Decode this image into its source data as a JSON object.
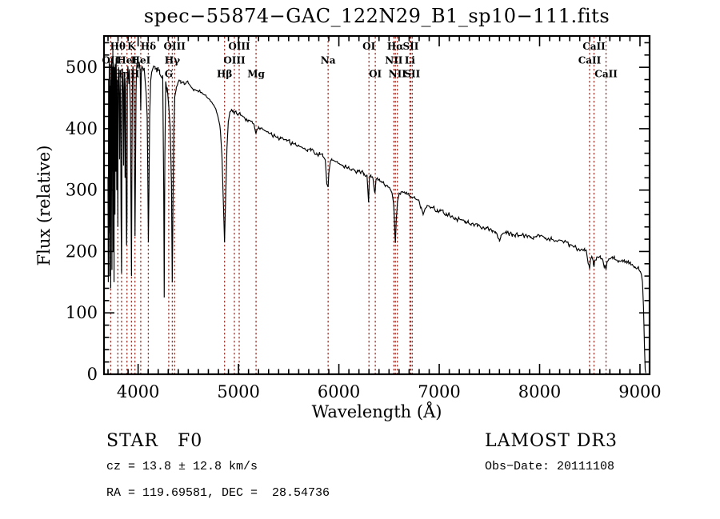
{
  "title": "spec−55874−GAC_122N29_B1_sp10−111.fits",
  "colors": {
    "background": "#ffffff",
    "axis": "#000000",
    "spectrum": "#000000",
    "line_marker": "#a03a32",
    "label_text": "#000000"
  },
  "axes": {
    "xlabel": "Wavelength (Å)",
    "ylabel": "Flux (relative)",
    "xlim": [
      3660,
      9096
    ],
    "ylim": [
      0,
      551
    ],
    "xticks": [
      4000,
      5000,
      6000,
      7000,
      8000,
      9000
    ],
    "yticks": [
      0,
      100,
      200,
      300,
      400,
      500
    ],
    "x_minor_step": 100,
    "y_minor_step": 20
  },
  "footer": {
    "class_label": "STAR   F0",
    "cz_line": "cz = 13.8 ± 12.8 km/s",
    "radec_line": "RA = 119.69581, DEC =  28.54736",
    "survey": "LAMOST DR3",
    "obs_date": "Obs−Date: 20111108"
  },
  "chart_data": {
    "type": "line",
    "series_name": "flux",
    "x_unit": "Angstrom",
    "title": "spec−55874−GAC_122N29_B1_sp10−111.fits",
    "xlabel": "Wavelength (Å)",
    "ylabel": "Flux (relative)",
    "xlim": [
      3660,
      9096
    ],
    "ylim": [
      0,
      551
    ],
    "noise_amplitude": 4,
    "spectral_lines": [
      {
        "wavelength": 3727,
        "label": "OII",
        "row": 2
      },
      {
        "wavelength": 3798,
        "label": "Hθ",
        "row": 1
      },
      {
        "wavelength": 3835,
        "label": "Hη",
        "row": 3
      },
      {
        "wavelength": 3889,
        "label": "HeI",
        "row": 2
      },
      {
        "wavelength": 3933.7,
        "label": "K",
        "row": 1
      },
      {
        "wavelength": 3968.5,
        "label": "H",
        "row": 3
      },
      {
        "wavelength": 4026,
        "label": "HeI",
        "row": 2
      },
      {
        "wavelength": 4101.7,
        "label": "Hδ",
        "row": 1
      },
      {
        "wavelength": 4305,
        "label": "G",
        "row": 3
      },
      {
        "wavelength": 4340.5,
        "label": "Hγ",
        "row": 2
      },
      {
        "wavelength": 4363,
        "label": "OIII",
        "row": 1
      },
      {
        "wavelength": 4861.3,
        "label": "Hβ",
        "row": 3
      },
      {
        "wavelength": 4959,
        "label": "OIII",
        "row": 2
      },
      {
        "wavelength": 5007,
        "label": "OIII",
        "row": 1
      },
      {
        "wavelength": 5175,
        "label": "Mg",
        "row": 3
      },
      {
        "wavelength": 5893,
        "label": "Na",
        "row": 2
      },
      {
        "wavelength": 6300,
        "label": "OI",
        "row": 1
      },
      {
        "wavelength": 6363,
        "label": "OI",
        "row": 3
      },
      {
        "wavelength": 6548,
        "label": "NII",
        "row": 2
      },
      {
        "wavelength": 6562.8,
        "label": "Hα",
        "row": 1
      },
      {
        "wavelength": 6583,
        "label": "NII",
        "row": 3
      },
      {
        "wavelength": 6708,
        "label": "Li",
        "row": 2
      },
      {
        "wavelength": 6716,
        "label": "SII",
        "row": 1
      },
      {
        "wavelength": 6731,
        "label": "SII",
        "row": 3
      },
      {
        "wavelength": 8498,
        "label": "CaII",
        "row": 2
      },
      {
        "wavelength": 8542,
        "label": "CaII",
        "row": 1
      },
      {
        "wavelength": 8662,
        "label": "CaII",
        "row": 3
      }
    ],
    "points": [
      [
        3700,
        320
      ],
      [
        3703,
        150
      ],
      [
        3706,
        480
      ],
      [
        3709,
        230
      ],
      [
        3712,
        515
      ],
      [
        3715,
        160
      ],
      [
        3718,
        470
      ],
      [
        3721,
        240
      ],
      [
        3724,
        505
      ],
      [
        3727,
        140
      ],
      [
        3730,
        480
      ],
      [
        3733,
        300
      ],
      [
        3736,
        515
      ],
      [
        3739,
        170
      ],
      [
        3742,
        500
      ],
      [
        3745,
        330
      ],
      [
        3748,
        535
      ],
      [
        3751,
        200
      ],
      [
        3754,
        505
      ],
      [
        3757,
        420
      ],
      [
        3760,
        150
      ],
      [
        3763,
        500
      ],
      [
        3766,
        455
      ],
      [
        3769,
        260
      ],
      [
        3772,
        505
      ],
      [
        3775,
        480
      ],
      [
        3778,
        330
      ],
      [
        3781,
        515
      ],
      [
        3784,
        465
      ],
      [
        3787,
        300
      ],
      [
        3790,
        480
      ],
      [
        3795,
        350
      ],
      [
        3798,
        240
      ],
      [
        3801,
        475
      ],
      [
        3805,
        500
      ],
      [
        3810,
        455
      ],
      [
        3815,
        350
      ],
      [
        3820,
        488
      ],
      [
        3825,
        440
      ],
      [
        3830,
        260
      ],
      [
        3835,
        165
      ],
      [
        3840,
        470
      ],
      [
        3845,
        498
      ],
      [
        3850,
        458
      ],
      [
        3855,
        340
      ],
      [
        3860,
        492
      ],
      [
        3865,
        468
      ],
      [
        3870,
        320
      ],
      [
        3875,
        483
      ],
      [
        3880,
        300
      ],
      [
        3885,
        210
      ],
      [
        3889,
        255
      ],
      [
        3893,
        478
      ],
      [
        3898,
        502
      ],
      [
        3903,
        488
      ],
      [
        3908,
        473
      ],
      [
        3913,
        497
      ],
      [
        3918,
        463
      ],
      [
        3923,
        420
      ],
      [
        3928,
        300
      ],
      [
        3934,
        160
      ],
      [
        3938,
        340
      ],
      [
        3943,
        478
      ],
      [
        3948,
        502
      ],
      [
        3953,
        492
      ],
      [
        3958,
        458
      ],
      [
        3963,
        350
      ],
      [
        3969,
        225
      ],
      [
        3974,
        330
      ],
      [
        3979,
        458
      ],
      [
        3984,
        497
      ],
      [
        3989,
        507
      ],
      [
        3995,
        502
      ],
      [
        4000,
        498
      ],
      [
        4010,
        509
      ],
      [
        4020,
        495
      ],
      [
        4026,
        430
      ],
      [
        4032,
        497
      ],
      [
        4040,
        502
      ],
      [
        4050,
        495
      ],
      [
        4060,
        499
      ],
      [
        4070,
        478
      ],
      [
        4080,
        458
      ],
      [
        4090,
        420
      ],
      [
        4096,
        330
      ],
      [
        4102,
        215
      ],
      [
        4108,
        300
      ],
      [
        4115,
        420
      ],
      [
        4125,
        478
      ],
      [
        4135,
        492
      ],
      [
        4145,
        497
      ],
      [
        4155,
        502
      ],
      [
        4170,
        497
      ],
      [
        4185,
        492
      ],
      [
        4200,
        495
      ],
      [
        4215,
        489
      ],
      [
        4230,
        485
      ],
      [
        4245,
        487
      ],
      [
        4255,
        300
      ],
      [
        4260,
        125
      ],
      [
        4266,
        350
      ],
      [
        4275,
        477
      ],
      [
        4290,
        467
      ],
      [
        4305,
        437
      ],
      [
        4320,
        400
      ],
      [
        4332,
        310
      ],
      [
        4340,
        150
      ],
      [
        4348,
        290
      ],
      [
        4356,
        400
      ],
      [
        4365,
        452
      ],
      [
        4380,
        467
      ],
      [
        4395,
        474
      ],
      [
        4410,
        478
      ],
      [
        4425,
        474
      ],
      [
        4440,
        476
      ],
      [
        4460,
        472
      ],
      [
        4480,
        476
      ],
      [
        4500,
        474
      ],
      [
        4520,
        470
      ],
      [
        4540,
        466
      ],
      [
        4560,
        464
      ],
      [
        4580,
        462
      ],
      [
        4600,
        460
      ],
      [
        4620,
        459
      ],
      [
        4640,
        457
      ],
      [
        4660,
        455
      ],
      [
        4680,
        452
      ],
      [
        4700,
        449
      ],
      [
        4720,
        445
      ],
      [
        4740,
        441
      ],
      [
        4760,
        436
      ],
      [
        4780,
        428
      ],
      [
        4800,
        416
      ],
      [
        4820,
        396
      ],
      [
        4835,
        356
      ],
      [
        4850,
        276
      ],
      [
        4861,
        215
      ],
      [
        4872,
        288
      ],
      [
        4885,
        368
      ],
      [
        4900,
        412
      ],
      [
        4915,
        427
      ],
      [
        4930,
        432
      ],
      [
        4945,
        430
      ],
      [
        4960,
        427
      ],
      [
        4980,
        425
      ],
      [
        5000,
        424
      ],
      [
        5020,
        422
      ],
      [
        5040,
        420
      ],
      [
        5060,
        418
      ],
      [
        5080,
        416
      ],
      [
        5100,
        414
      ],
      [
        5120,
        412
      ],
      [
        5140,
        409
      ],
      [
        5160,
        402
      ],
      [
        5175,
        393
      ],
      [
        5185,
        399
      ],
      [
        5200,
        403
      ],
      [
        5220,
        401
      ],
      [
        5240,
        399
      ],
      [
        5260,
        397
      ],
      [
        5280,
        395
      ],
      [
        5300,
        393
      ],
      [
        5330,
        391
      ],
      [
        5360,
        389
      ],
      [
        5390,
        387
      ],
      [
        5420,
        384
      ],
      [
        5450,
        382
      ],
      [
        5480,
        380
      ],
      [
        5510,
        378
      ],
      [
        5540,
        376
      ],
      [
        5570,
        374
      ],
      [
        5600,
        372
      ],
      [
        5630,
        370
      ],
      [
        5660,
        368
      ],
      [
        5690,
        366
      ],
      [
        5720,
        364
      ],
      [
        5750,
        362
      ],
      [
        5780,
        360
      ],
      [
        5810,
        358
      ],
      [
        5840,
        355
      ],
      [
        5865,
        349
      ],
      [
        5880,
        310
      ],
      [
        5893,
        305
      ],
      [
        5900,
        328
      ],
      [
        5915,
        347
      ],
      [
        5930,
        349
      ],
      [
        5950,
        348
      ],
      [
        5970,
        346
      ],
      [
        5990,
        344
      ],
      [
        6010,
        342
      ],
      [
        6040,
        340
      ],
      [
        6070,
        338
      ],
      [
        6100,
        336
      ],
      [
        6130,
        334
      ],
      [
        6160,
        332
      ],
      [
        6190,
        330
      ],
      [
        6220,
        329
      ],
      [
        6250,
        327
      ],
      [
        6280,
        325
      ],
      [
        6296,
        280
      ],
      [
        6305,
        322
      ],
      [
        6320,
        321
      ],
      [
        6340,
        319
      ],
      [
        6360,
        295
      ],
      [
        6370,
        317
      ],
      [
        6390,
        316
      ],
      [
        6410,
        314
      ],
      [
        6430,
        312
      ],
      [
        6450,
        310
      ],
      [
        6470,
        308
      ],
      [
        6490,
        305
      ],
      [
        6510,
        302
      ],
      [
        6530,
        295
      ],
      [
        6548,
        272
      ],
      [
        6556,
        238
      ],
      [
        6563,
        214
      ],
      [
        6572,
        252
      ],
      [
        6585,
        282
      ],
      [
        6600,
        295
      ],
      [
        6620,
        297
      ],
      [
        6640,
        296
      ],
      [
        6660,
        294
      ],
      [
        6680,
        293
      ],
      [
        6700,
        291
      ],
      [
        6720,
        289
      ],
      [
        6740,
        288
      ],
      [
        6760,
        286
      ],
      [
        6780,
        284
      ],
      [
        6800,
        282
      ],
      [
        6820,
        272
      ],
      [
        6840,
        260
      ],
      [
        6860,
        270
      ],
      [
        6880,
        275
      ],
      [
        6900,
        274
      ],
      [
        6920,
        272
      ],
      [
        6950,
        270
      ],
      [
        6980,
        268
      ],
      [
        7010,
        266
      ],
      [
        7040,
        264
      ],
      [
        7070,
        262
      ],
      [
        7100,
        260
      ],
      [
        7130,
        258
      ],
      [
        7160,
        255
      ],
      [
        7180,
        249
      ],
      [
        7200,
        253
      ],
      [
        7230,
        251
      ],
      [
        7260,
        249
      ],
      [
        7290,
        247
      ],
      [
        7320,
        245
      ],
      [
        7350,
        243
      ],
      [
        7380,
        241
      ],
      [
        7410,
        240
      ],
      [
        7440,
        240
      ],
      [
        7470,
        238
      ],
      [
        7500,
        236
      ],
      [
        7530,
        234
      ],
      [
        7560,
        232
      ],
      [
        7585,
        222
      ],
      [
        7600,
        216
      ],
      [
        7615,
        226
      ],
      [
        7640,
        230
      ],
      [
        7670,
        229
      ],
      [
        7700,
        229
      ],
      [
        7730,
        228
      ],
      [
        7760,
        227
      ],
      [
        7790,
        226
      ],
      [
        7820,
        226
      ],
      [
        7850,
        225
      ],
      [
        7880,
        225
      ],
      [
        7910,
        224
      ],
      [
        7940,
        224
      ],
      [
        7970,
        224
      ],
      [
        8000,
        224
      ],
      [
        8060,
        222
      ],
      [
        8120,
        220
      ],
      [
        8180,
        217
      ],
      [
        8240,
        214
      ],
      [
        8300,
        211
      ],
      [
        8360,
        208
      ],
      [
        8420,
        204
      ],
      [
        8450,
        201
      ],
      [
        8470,
        196
      ],
      [
        8492,
        178
      ],
      [
        8498,
        172
      ],
      [
        8506,
        186
      ],
      [
        8520,
        192
      ],
      [
        8535,
        180
      ],
      [
        8542,
        175
      ],
      [
        8550,
        186
      ],
      [
        8570,
        191
      ],
      [
        8590,
        190
      ],
      [
        8610,
        188
      ],
      [
        8630,
        186
      ],
      [
        8650,
        177
      ],
      [
        8662,
        171
      ],
      [
        8672,
        183
      ],
      [
        8690,
        188
      ],
      [
        8710,
        189
      ],
      [
        8730,
        188
      ],
      [
        8750,
        187
      ],
      [
        8770,
        186
      ],
      [
        8790,
        185
      ],
      [
        8810,
        184
      ],
      [
        8830,
        183
      ],
      [
        8850,
        182
      ],
      [
        8870,
        181
      ],
      [
        8890,
        180
      ],
      [
        8910,
        178
      ],
      [
        8930,
        177
      ],
      [
        8950,
        175
      ],
      [
        8970,
        172
      ],
      [
        8990,
        170
      ],
      [
        9005,
        167
      ],
      [
        9015,
        162
      ],
      [
        9025,
        150
      ],
      [
        9035,
        110
      ],
      [
        9045,
        45
      ],
      [
        9052,
        8
      ],
      [
        9058,
        2
      ]
    ]
  }
}
